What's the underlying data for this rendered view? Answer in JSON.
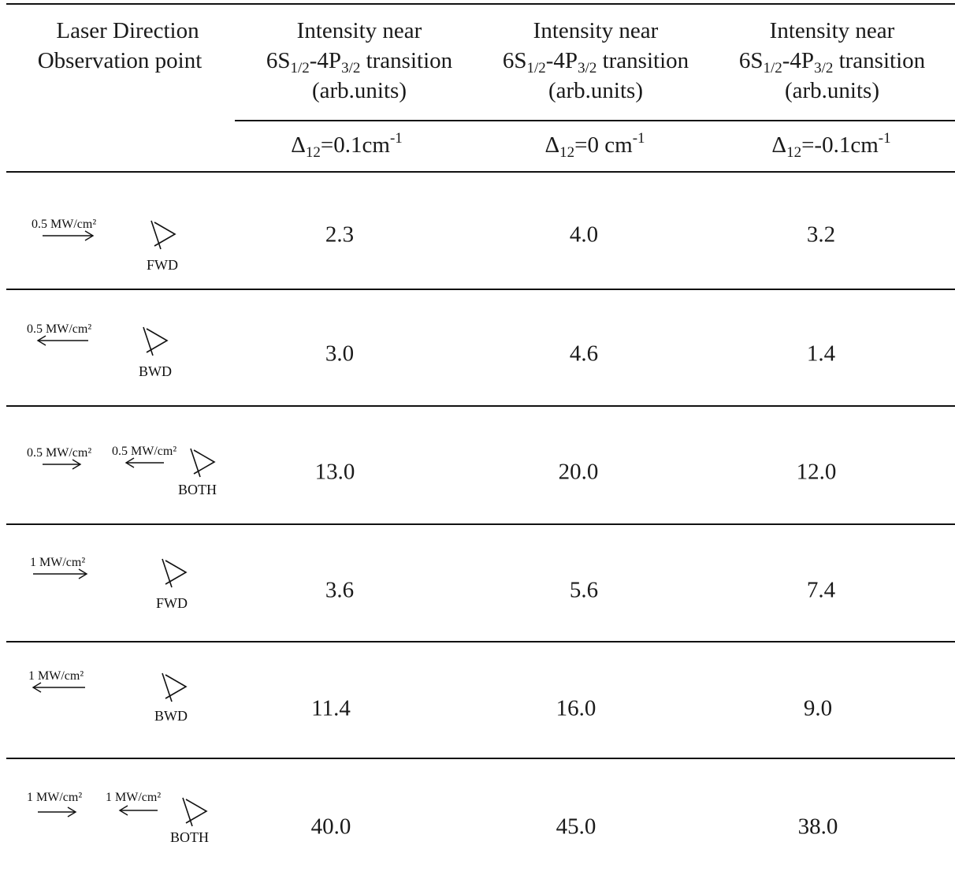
{
  "header": {
    "col0_line1": "Laser Direction",
    "col0_line2": "Observation point",
    "intensity_line1": "Intensity near",
    "transition_a": "6S",
    "transition_a_sub": "1/2",
    "transition_b": "-4P",
    "transition_b_sub": "3/2",
    "transition_c": " transition",
    "units": "(arb.units)",
    "detunings": [
      {
        "pre": "Δ",
        "sub": "12",
        "val": "=0.1cm",
        "sup": "-1"
      },
      {
        "pre": "Δ",
        "sub": "12",
        "val": "=0 cm",
        "sup": "-1"
      },
      {
        "pre": "Δ",
        "sub": "12",
        "val": "=-0.1cm",
        "sup": "-1"
      }
    ]
  },
  "rows": [
    {
      "laser_left": "0.5 MW/cm²",
      "laser_right": "",
      "direction": "FWD",
      "values": [
        "2.3",
        "4.0",
        "3.2"
      ]
    },
    {
      "laser_left": "0.5 MW/cm²",
      "laser_right": "",
      "direction": "BWD",
      "values": [
        "3.0",
        "4.6",
        "1.4"
      ]
    },
    {
      "laser_left": "0.5 MW/cm²",
      "laser_right": "0.5 MW/cm²",
      "direction": "BOTH",
      "values": [
        "13.0",
        "20.0",
        "12.0"
      ]
    },
    {
      "laser_left": "1 MW/cm²",
      "laser_right": "",
      "direction": "FWD",
      "values": [
        "3.6",
        "5.6",
        "7.4"
      ]
    },
    {
      "laser_left": "1 MW/cm²",
      "laser_right": "",
      "direction": "BWD",
      "values": [
        "11.4",
        "16.0",
        "9.0"
      ]
    },
    {
      "laser_left": "1 MW/cm²",
      "laser_right": "1 MW/cm²",
      "direction": "BOTH",
      "values": [
        "40.0",
        "45.0",
        "38.0"
      ]
    }
  ]
}
